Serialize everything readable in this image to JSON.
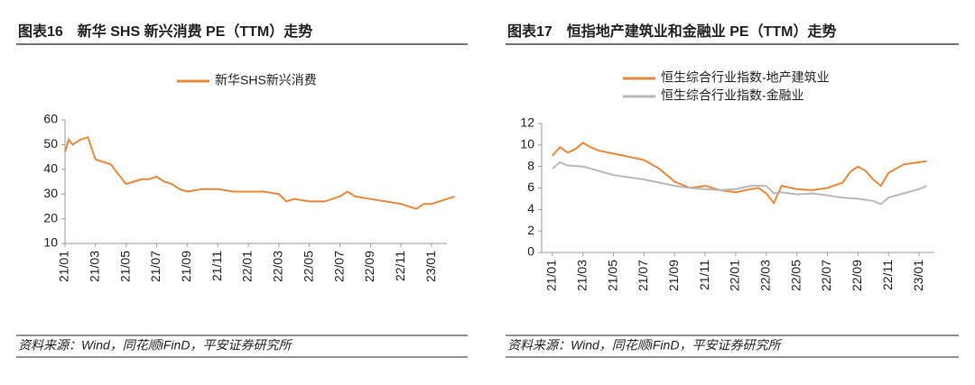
{
  "chart_data": [
    {
      "type": "line",
      "title": "图表16　新华 SHS 新兴消费 PE（TTM）走势",
      "source": "资料来源：Wind，同花顺iFinD，平安证券研究所",
      "xlim": [
        0,
        25
      ],
      "ylim": [
        10,
        60
      ],
      "yticks": [
        10,
        20,
        30,
        40,
        50,
        60
      ],
      "xticks": [
        {
          "value": 0,
          "label": "21/01"
        },
        {
          "value": 2,
          "label": "21/03"
        },
        {
          "value": 4,
          "label": "21/05"
        },
        {
          "value": 6,
          "label": "21/07"
        },
        {
          "value": 8,
          "label": "21/09"
        },
        {
          "value": 10,
          "label": "21/11"
        },
        {
          "value": 12,
          "label": "22/01"
        },
        {
          "value": 14,
          "label": "22/03"
        },
        {
          "value": 16,
          "label": "22/05"
        },
        {
          "value": 18,
          "label": "22/07"
        },
        {
          "value": 20,
          "label": "22/09"
        },
        {
          "value": 22,
          "label": "22/11"
        },
        {
          "value": 24,
          "label": "23/01"
        }
      ],
      "legend": "top-center",
      "series": [
        {
          "name": "新华SHS新兴消费",
          "color": "#e8883a",
          "x": [
            0,
            0.25,
            0.5,
            1,
            1.5,
            2,
            2.5,
            3,
            3.5,
            4,
            4.5,
            5,
            5.5,
            6,
            6.5,
            7,
            7.5,
            8,
            9,
            10,
            11,
            12,
            13,
            14,
            14.5,
            15,
            16,
            17,
            18,
            18.5,
            19,
            20,
            21,
            22,
            23,
            23.5,
            24,
            25,
            25.5
          ],
          "values": [
            47,
            52,
            50,
            52,
            53,
            44,
            43,
            42,
            38,
            34,
            35,
            36,
            36,
            37,
            35,
            34,
            32,
            31,
            32,
            32,
            31,
            31,
            31,
            30,
            27,
            28,
            27,
            27,
            29,
            31,
            29,
            28,
            27,
            26,
            24,
            26,
            26,
            28,
            29
          ]
        }
      ]
    },
    {
      "type": "line",
      "title": "图表17　恒指地产建筑业和金融业 PE（TTM）走势",
      "source": "资料来源：Wind，同花顺iFinD，平安证券研究所",
      "xlim": [
        -0.7,
        25
      ],
      "ylim": [
        0,
        12
      ],
      "yticks": [
        0,
        2,
        4,
        6,
        8,
        10,
        12
      ],
      "xticks": [
        {
          "value": 0,
          "label": "21/01"
        },
        {
          "value": 2,
          "label": "21/03"
        },
        {
          "value": 4,
          "label": "21/05"
        },
        {
          "value": 6,
          "label": "21/07"
        },
        {
          "value": 8,
          "label": "21/09"
        },
        {
          "value": 10,
          "label": "21/11"
        },
        {
          "value": 12,
          "label": "22/01"
        },
        {
          "value": 14,
          "label": "22/03"
        },
        {
          "value": 16,
          "label": "22/05"
        },
        {
          "value": 18,
          "label": "22/07"
        },
        {
          "value": 20,
          "label": "22/09"
        },
        {
          "value": 22,
          "label": "22/11"
        },
        {
          "value": 24,
          "label": "23/01"
        }
      ],
      "legend": "top-left",
      "series": [
        {
          "name": "恒生综合行业指数-地产建筑业",
          "color": "#e8883a",
          "x": [
            0,
            0.5,
            1,
            1.5,
            2,
            2.5,
            3,
            4,
            5,
            6,
            7,
            7.5,
            8,
            9,
            10,
            11,
            12,
            13,
            13.5,
            14,
            14.5,
            15,
            16,
            17,
            18,
            19,
            19.5,
            20,
            20.5,
            21,
            21.5,
            22,
            23,
            24,
            24.5
          ],
          "values": [
            9,
            9.8,
            9.3,
            9.6,
            10.2,
            9.8,
            9.5,
            9.2,
            8.9,
            8.6,
            7.8,
            7.2,
            6.6,
            6.0,
            6.2,
            5.8,
            5.6,
            5.9,
            6.0,
            5.5,
            4.6,
            6.2,
            5.9,
            5.8,
            6.0,
            6.5,
            7.5,
            8.0,
            7.6,
            6.8,
            6.2,
            7.4,
            8.2,
            8.4,
            8.5
          ]
        },
        {
          "name": "恒生综合行业指数-金融业",
          "color": "#b8b8b8",
          "x": [
            0,
            0.5,
            1,
            2,
            3,
            4,
            5,
            6,
            7,
            8,
            9,
            10,
            11,
            12,
            13,
            14,
            14.5,
            15,
            16,
            17,
            18,
            19,
            20,
            21,
            21.5,
            22,
            23,
            24,
            24.5
          ],
          "values": [
            7.8,
            8.4,
            8.1,
            8.0,
            7.6,
            7.2,
            7.0,
            6.8,
            6.5,
            6.2,
            6.0,
            5.9,
            5.8,
            5.9,
            6.2,
            6.2,
            5.5,
            5.6,
            5.4,
            5.5,
            5.3,
            5.1,
            5.0,
            4.8,
            4.5,
            5.1,
            5.5,
            5.9,
            6.2
          ]
        }
      ]
    }
  ]
}
